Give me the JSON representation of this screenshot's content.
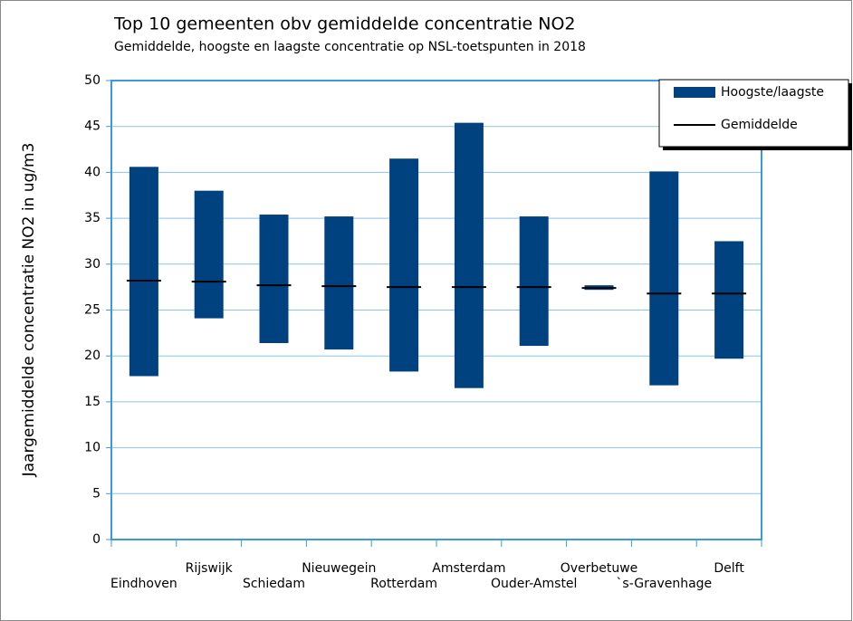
{
  "chart_data": {
    "type": "range_bar",
    "title": "Top 10 gemeenten obv gemiddelde concentratie NO2",
    "subtitle": "Gemiddelde, hoogste en laagste concentratie op NSL-toetspunten in 2018",
    "y_label": "Jaargemiddelde concentratie NO2 in ug/m3",
    "categories": [
      "Eindhoven",
      "Rijswijk",
      "Schiedam",
      "Nieuwegein",
      "Rotterdam",
      "Amsterdam",
      "Ouder-Amstel",
      "Overbetuwe",
      "`s-Gravenhage",
      "Delft"
    ],
    "series": [
      {
        "name": "Hoogste/laagste",
        "color": "#00427f",
        "low": [
          17.8,
          24.1,
          21.4,
          20.7,
          18.3,
          16.5,
          21.1,
          27.2,
          16.8,
          19.7
        ],
        "high": [
          40.6,
          38.0,
          35.4,
          35.2,
          41.5,
          45.4,
          35.2,
          27.7,
          40.1,
          32.5
        ]
      },
      {
        "name": "Gemiddelde",
        "color": "#000000",
        "values": [
          28.2,
          28.1,
          27.7,
          27.6,
          27.5,
          27.5,
          27.5,
          27.4,
          26.8,
          26.8
        ]
      }
    ],
    "ylim": [
      0,
      50
    ],
    "yticks": [
      0,
      5,
      10,
      15,
      20,
      25,
      30,
      35,
      40,
      45,
      50
    ],
    "grid": true,
    "legend": "top-right"
  }
}
